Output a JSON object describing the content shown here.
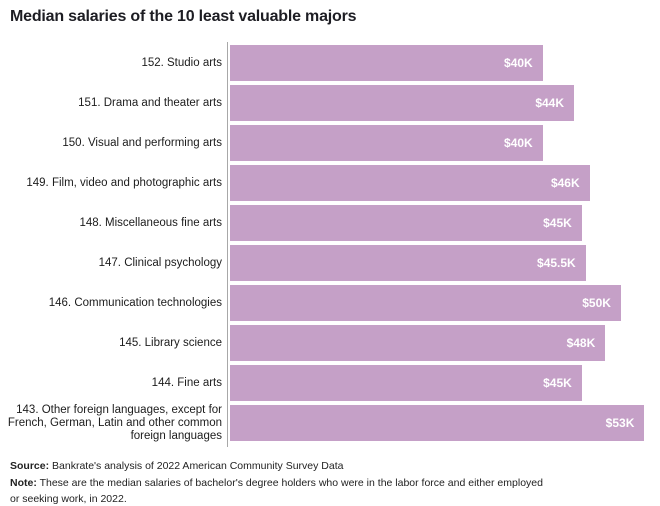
{
  "chart_data": {
    "type": "bar",
    "orientation": "horizontal",
    "title": "Median salaries of the 10 least valuable majors",
    "categories": [
      "152. Studio arts",
      "151. Drama and theater arts",
      "150. Visual and performing arts",
      "149. Film, video and photographic arts",
      "148. Miscellaneous fine arts",
      "147. Clinical psychology",
      "146. Communication technologies",
      "145. Library science",
      "144. Fine arts",
      "143. Other foreign languages, except for French, German, Latin and other common foreign languages"
    ],
    "values": [
      40,
      44,
      40,
      46,
      45,
      45.5,
      50,
      48,
      45,
      53
    ],
    "value_labels": [
      "$40K",
      "$44K",
      "$40K",
      "$46K",
      "$45K",
      "$45.5K",
      "$50K",
      "$48K",
      "$45K",
      "$53K"
    ],
    "unit": "USD thousands per year",
    "xlim": [
      0,
      55
    ],
    "grid": false,
    "legend": false,
    "bar_color": "#c5a0c7",
    "value_label_color": "#ffffff",
    "axis_line_color": "#a8a8a8"
  },
  "footer": {
    "source_label": "Source:",
    "source_text": "Bankrate's analysis of 2022 American Community Survey Data",
    "note_label": "Note:",
    "note_text": "These are the median salaries of bachelor's degree holders who were in the labor force and either employed or seeking work, in 2022."
  }
}
